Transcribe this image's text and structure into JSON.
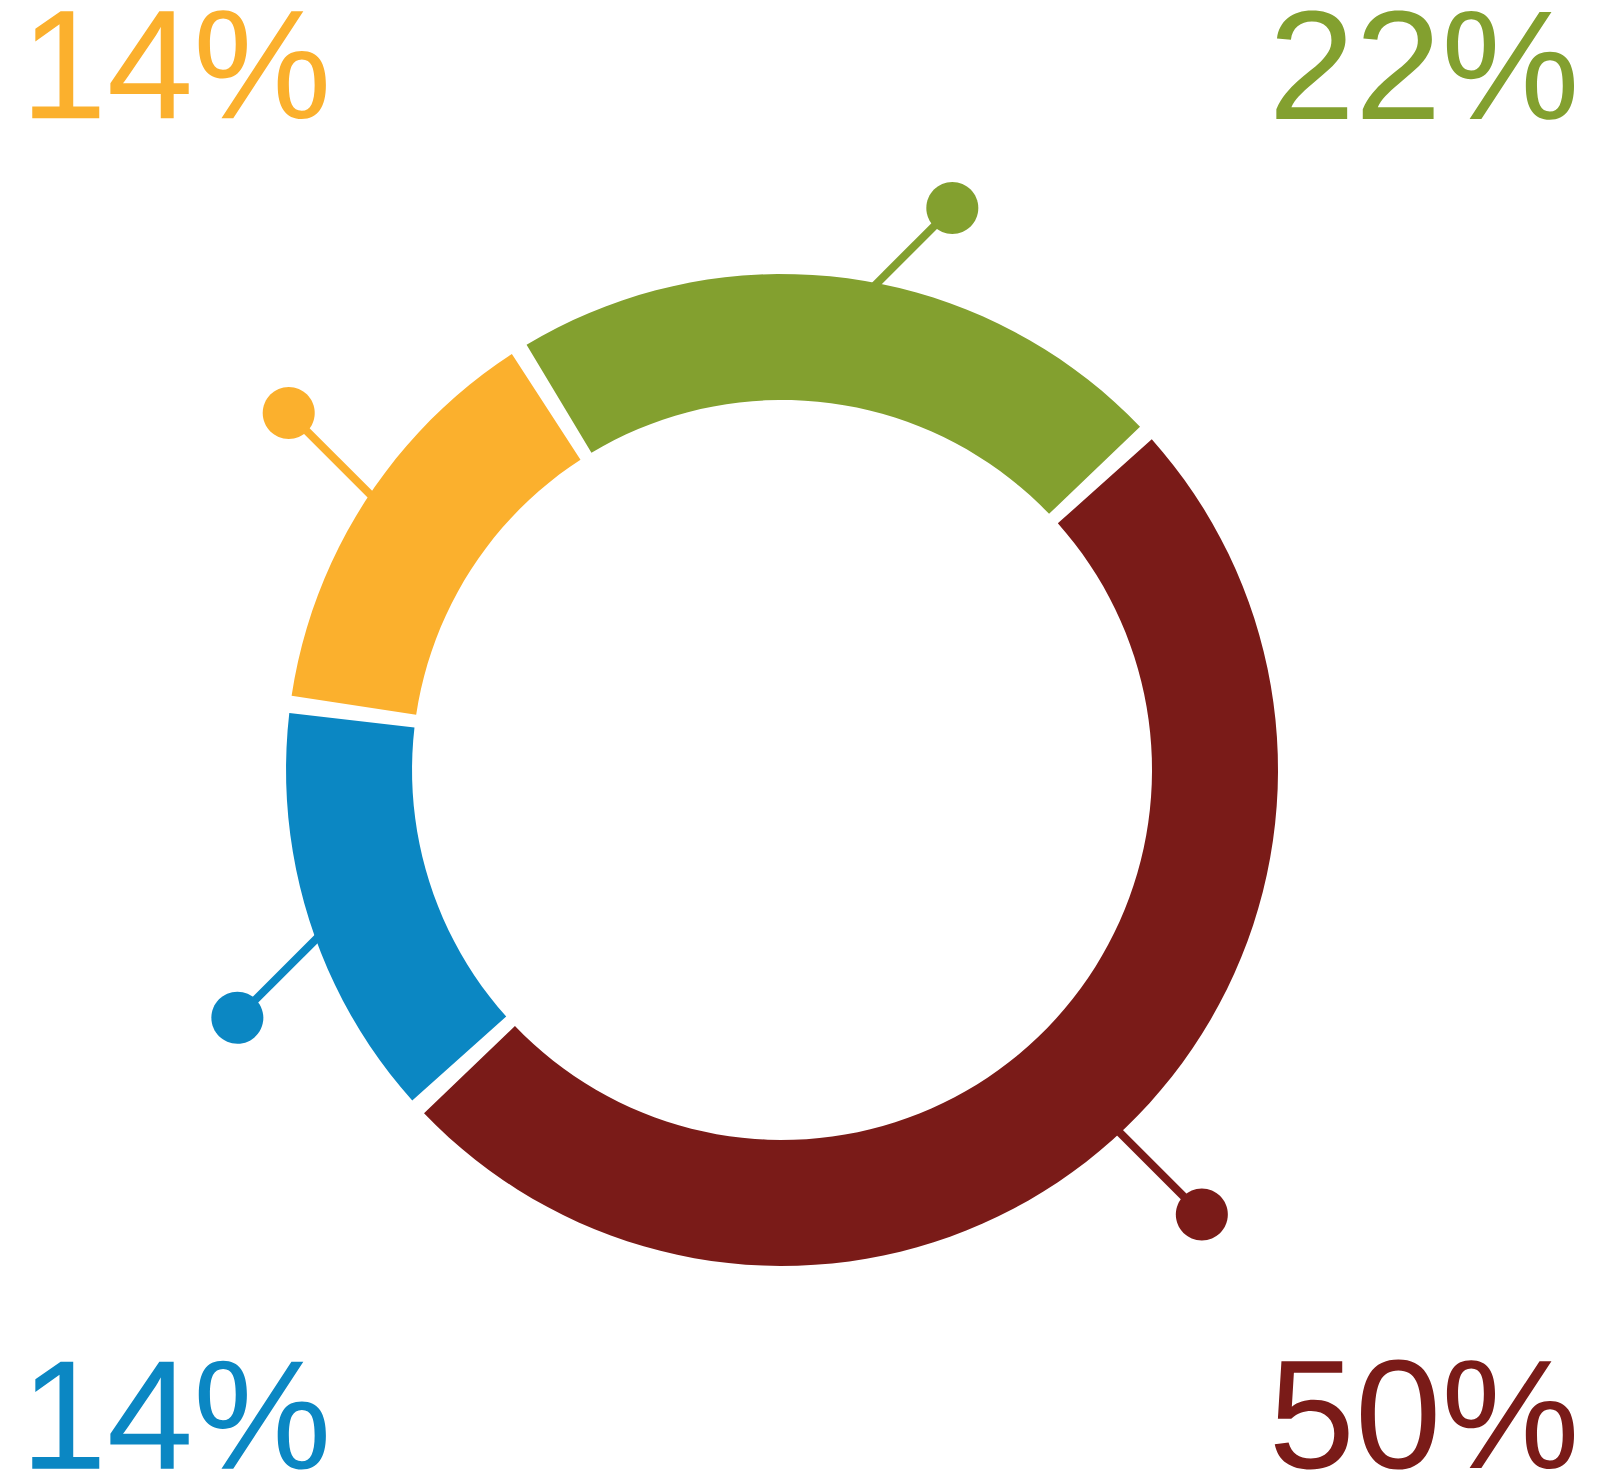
{
  "chart_data": {
    "type": "donut",
    "categories": [
      null,
      null,
      null,
      null
    ],
    "values": [
      22,
      50,
      14,
      14
    ],
    "colors": [
      "#83a02f",
      "#7a1b18",
      "#0b87c3",
      "#fbb02d"
    ],
    "value_labels": [
      "22%",
      "50%",
      "14%",
      "14%"
    ]
  }
}
